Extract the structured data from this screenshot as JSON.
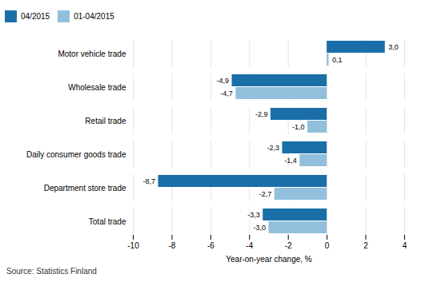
{
  "chart_data": {
    "type": "bar",
    "orientation": "horizontal",
    "categories": [
      "Total trade",
      "Department store trade",
      "Daily consumer goods trade",
      "Retail trade",
      "Wholesale trade",
      "Motor vehicle trade"
    ],
    "series": [
      {
        "name": "04/2015",
        "color": "#1a6fa8",
        "values": [
          -3.3,
          -8.7,
          -2.3,
          -2.9,
          -4.9,
          3.0
        ],
        "value_labels": [
          "-3,3",
          "-8,7",
          "-2,3",
          "-2,9",
          "-4,9",
          "3,0"
        ]
      },
      {
        "name": "01-04/2015",
        "color": "#92c0dc",
        "values": [
          -3.0,
          -2.7,
          -1.4,
          -1.0,
          -4.7,
          0.1
        ],
        "value_labels": [
          "-3,0",
          "-2,7",
          "-1,4",
          "-1,0",
          "-4,7",
          "0,1"
        ]
      }
    ],
    "xlim": [
      -10,
      4
    ],
    "xticks": [
      -10,
      -8,
      -6,
      -4,
      -2,
      0,
      2,
      4
    ],
    "xlabel": "Year-on-year change, %",
    "caption": "Source: Statistics Finland",
    "grid": true,
    "legend": "top",
    "data_labels": true
  }
}
